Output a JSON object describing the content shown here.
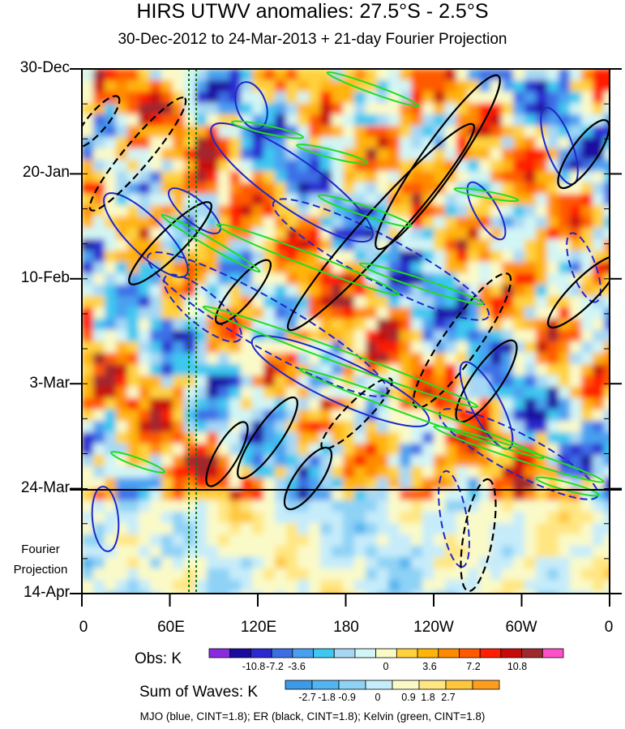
{
  "chart_data": {
    "type": "heatmap",
    "title": "HIRS UTWV anomalies: 27.5°S - 2.5°S",
    "subtitle": "30-Dec-2012 to 24-Mar-2013 + 21-day Fourier Projection",
    "xlabel": "",
    "ylabel": "",
    "x_ticks": [
      "0",
      "60E",
      "120E",
      "180",
      "120W",
      "60W",
      "0"
    ],
    "y_ticks": [
      "30-Dec",
      "20-Jan",
      "10-Feb",
      "3-Mar",
      "24-Mar",
      "14-Apr"
    ],
    "y_range": [
      "30-Dec-2012",
      "14-Apr-2013"
    ],
    "projection_start": "24-Mar",
    "projection_label": [
      "Fourier",
      "Projection"
    ],
    "obs_colorbar": {
      "title": "Obs: K",
      "labels": [
        "-10.8",
        "-7.2",
        "-3.6",
        "0",
        "3.6",
        "7.2",
        "10.8"
      ],
      "colors": [
        "#8a2be2",
        "#1a0aa0",
        "#2a2ad0",
        "#3c6ee6",
        "#4aa0f0",
        "#3cc8f0",
        "#a6d8f5",
        "#d2f5f5",
        "#fafac8",
        "#ffd23c",
        "#ffb40a",
        "#ff8a00",
        "#ff5a00",
        "#ff1e00",
        "#c80a0a",
        "#a0282d",
        "#ff50c8"
      ]
    },
    "waves_colorbar": {
      "title": "Sum of Waves: K",
      "labels": [
        "-2.7",
        "-1.8",
        "-0.9",
        "0",
        "0.9",
        "1.8",
        "2.7"
      ],
      "colors": [
        "#3c9ae6",
        "#52b4f0",
        "#8ed2f6",
        "#c6ecfa",
        "#fafac8",
        "#ffe682",
        "#ffc83c",
        "#ff9e1e"
      ]
    },
    "contours": {
      "mjo": {
        "name": "MJO",
        "color": "#1e28c8",
        "cint": 1.8
      },
      "er": {
        "name": "ER",
        "color": "#000000",
        "cint": 1.8
      },
      "kelvin": {
        "name": "Kelvin",
        "color": "#22dd22",
        "cint": 1.8
      }
    },
    "reference_lines_lon": [
      73,
      78
    ],
    "footer": "MJO (blue, CINT=1.8); ER (black, CINT=1.8); Kelvin (green, CINT=1.8)"
  }
}
